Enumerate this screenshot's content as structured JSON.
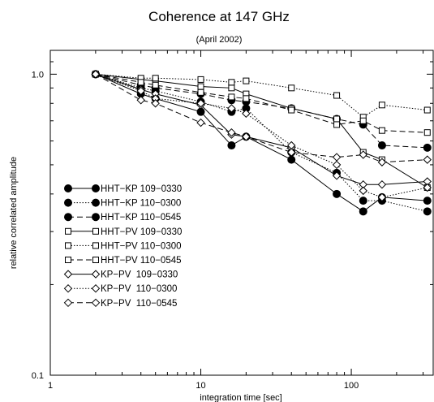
{
  "chart_data": {
    "type": "line",
    "title": "Coherence at 147 GHz",
    "subtitle": "(April 2002)",
    "xlabel": "integration time [sec]",
    "ylabel": "relative correlated amplitude",
    "xscale": "log",
    "yscale": "log",
    "xlim": [
      1,
      350
    ],
    "ylim": [
      0.1,
      1.2
    ],
    "x_ticks": [
      {
        "value": 1,
        "label": "1"
      },
      {
        "value": 10,
        "label": "10"
      },
      {
        "value": 100,
        "label": "100"
      }
    ],
    "y_ticks": [
      {
        "value": 0.1,
        "label": "0.1"
      },
      {
        "value": 1.0,
        "label": "1.0"
      }
    ],
    "grid": false,
    "legend_position": "left",
    "series": [
      {
        "name": "HHT−KP 109−0330",
        "marker": "filled-circle",
        "dash": "solid",
        "x": [
          2,
          4,
          5,
          10,
          16,
          20,
          40,
          80,
          120,
          160,
          320
        ],
        "y": [
          1.0,
          0.86,
          0.83,
          0.75,
          0.58,
          0.62,
          0.52,
          0.4,
          0.35,
          0.39,
          0.38
        ]
      },
      {
        "name": "HHT−KP 110−0300",
        "marker": "filled-circle",
        "dash": "dotted",
        "x": [
          2,
          4,
          5,
          10,
          16,
          20,
          40,
          80,
          120,
          160,
          320
        ],
        "y": [
          1.0,
          0.9,
          0.88,
          0.81,
          0.75,
          0.77,
          0.55,
          0.47,
          0.38,
          0.38,
          0.35
        ]
      },
      {
        "name": "HHT−KP 110−0545",
        "marker": "filled-circle",
        "dash": "dashed",
        "x": [
          2,
          4,
          5,
          10,
          16,
          20,
          40,
          80,
          120,
          160,
          320
        ],
        "y": [
          1.0,
          0.92,
          0.9,
          0.86,
          0.82,
          0.81,
          0.77,
          0.71,
          0.68,
          0.58,
          0.57
        ]
      },
      {
        "name": "HHT−PV 109−0330",
        "marker": "open-square",
        "dash": "solid",
        "x": [
          2,
          4,
          5,
          10,
          16,
          20,
          40,
          80,
          120,
          160,
          320
        ],
        "y": [
          1.0,
          0.96,
          0.95,
          0.91,
          0.9,
          0.86,
          0.77,
          0.71,
          0.55,
          0.52,
          0.42
        ]
      },
      {
        "name": "HHT−PV 110−0300",
        "marker": "open-square",
        "dash": "dotted",
        "x": [
          2,
          4,
          5,
          10,
          16,
          20,
          40,
          80,
          120,
          160,
          320
        ],
        "y": [
          1.0,
          0.97,
          0.97,
          0.96,
          0.94,
          0.95,
          0.9,
          0.85,
          0.72,
          0.79,
          0.76
        ]
      },
      {
        "name": "HHT−PV 110−0545",
        "marker": "open-square",
        "dash": "dashed",
        "x": [
          2,
          4,
          5,
          10,
          16,
          20,
          40,
          80,
          120,
          160,
          320
        ],
        "y": [
          1.0,
          0.94,
          0.92,
          0.87,
          0.84,
          0.83,
          0.76,
          0.68,
          0.7,
          0.65,
          0.64
        ]
      },
      {
        "name": "KP−PV  109−0330",
        "marker": "open-diamond",
        "dash": "solid",
        "x": [
          2,
          4,
          5,
          10,
          16,
          20,
          40,
          80,
          120,
          160,
          320
        ],
        "y": [
          1.0,
          0.89,
          0.86,
          0.79,
          0.63,
          0.62,
          0.57,
          0.46,
          0.43,
          0.43,
          0.44
        ]
      },
      {
        "name": "KP−PV  110−0300",
        "marker": "open-diamond",
        "dash": "dotted",
        "x": [
          2,
          4,
          5,
          10,
          16,
          20,
          40,
          80,
          120,
          160,
          320
        ],
        "y": [
          1.0,
          0.88,
          0.83,
          0.8,
          0.77,
          0.74,
          0.58,
          0.5,
          0.41,
          0.39,
          0.42
        ]
      },
      {
        "name": "KP−PV  110−0545",
        "marker": "open-diamond",
        "dash": "dashed",
        "x": [
          2,
          4,
          5,
          10,
          16,
          20,
          40,
          80,
          120,
          160,
          320
        ],
        "y": [
          1.0,
          0.82,
          0.8,
          0.69,
          0.64,
          0.62,
          0.55,
          0.53,
          0.54,
          0.51,
          0.52
        ]
      }
    ]
  }
}
